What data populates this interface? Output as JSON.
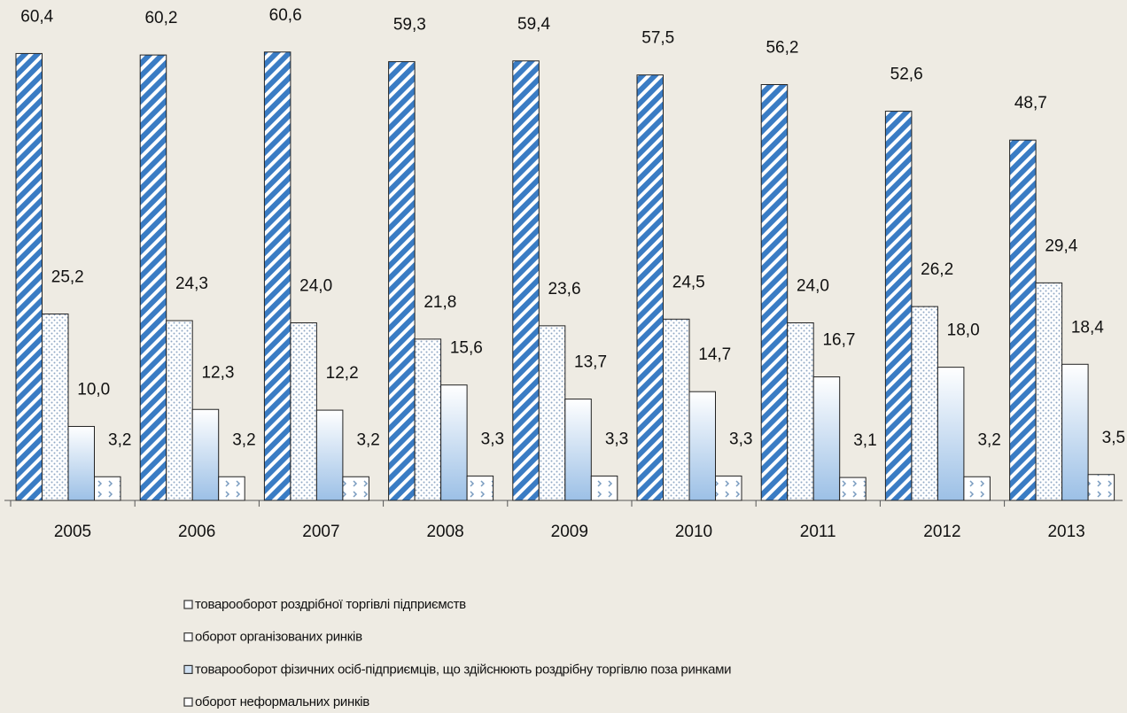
{
  "chart_data": {
    "type": "bar",
    "categories": [
      "2005",
      "2006",
      "2007",
      "2008",
      "2009",
      "2010",
      "2011",
      "2012",
      "2013"
    ],
    "ylim": [
      0,
      65
    ],
    "series": [
      {
        "name": "товарооборот роздрібної торгівлі підприємств",
        "color": "#3a7cc4",
        "values": [
          60.4,
          60.2,
          60.6,
          59.3,
          59.4,
          57.5,
          56.2,
          52.6,
          48.7
        ],
        "value_labels": [
          "60,4",
          "60,2",
          "60,6",
          "59,3",
          "59,4",
          "57,5",
          "56,2",
          "52,6",
          "48,7"
        ]
      },
      {
        "name": "оборот організованих ринків",
        "color": "#8fa8c4",
        "values": [
          25.2,
          24.3,
          24.0,
          21.8,
          23.6,
          24.5,
          24.0,
          26.2,
          29.4
        ],
        "value_labels": [
          "25,2",
          "24,3",
          "24,0",
          "21,8",
          "23,6",
          "24,5",
          "24,0",
          "26,2",
          "29,4"
        ]
      },
      {
        "name": "товарооборот фізичних осіб-підприємців, що здійснюють роздрібну торгівлю поза ринками",
        "color": "#9cc0e6",
        "values": [
          10.0,
          12.3,
          12.2,
          15.6,
          13.7,
          14.7,
          16.7,
          18.0,
          18.4
        ],
        "value_labels": [
          "10,0",
          "12,3",
          "12,2",
          "15,6",
          "13,7",
          "14,7",
          "16,7",
          "18,0",
          "18,4"
        ]
      },
      {
        "name": "оборот неформальних ринків",
        "color": "#7a9cc0",
        "values": [
          3.2,
          3.2,
          3.2,
          3.3,
          3.3,
          3.3,
          3.1,
          3.2,
          3.5
        ],
        "value_labels": [
          "3,2",
          "3,2",
          "3,2",
          "3,3",
          "3,3",
          "3,3",
          "3,1",
          "3,2",
          "3,5"
        ]
      }
    ]
  }
}
